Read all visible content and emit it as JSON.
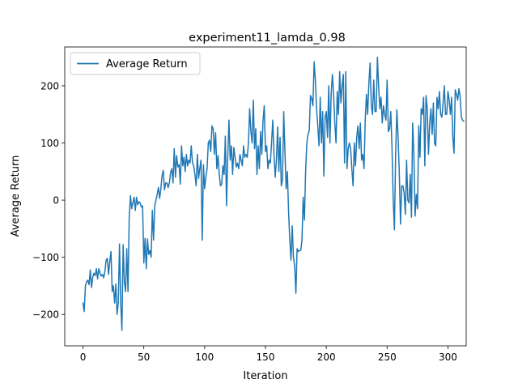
{
  "chart_data": {
    "type": "line",
    "title": "experiment11_lamda_0.98",
    "xlabel": "Iteration",
    "ylabel": "Average Return",
    "xlim": [
      -15,
      315
    ],
    "ylim": [
      -255,
      268
    ],
    "xticks": [
      0,
      50,
      100,
      150,
      200,
      250,
      300
    ],
    "yticks": [
      -200,
      -100,
      0,
      100,
      200
    ],
    "xtick_labels": [
      "0",
      "50",
      "100",
      "150",
      "200",
      "250",
      "300"
    ],
    "ytick_labels": [
      "−200",
      "−100",
      "0",
      "100",
      "200"
    ],
    "grid": false,
    "legend_position": "top-left",
    "series": [
      {
        "name": "Average Return",
        "color": "#1f77b4",
        "x_start": 0,
        "x_step": 1,
        "values": [
          -180,
          -195,
          -150,
          -143,
          -140,
          -148,
          -122,
          -153,
          -135,
          -128,
          -132,
          -120,
          -138,
          -120,
          -128,
          -133,
          -130,
          -136,
          -125,
          -105,
          -102,
          -130,
          -108,
          -90,
          -160,
          -150,
          -180,
          -147,
          -200,
          -180,
          -77,
          -180,
          -228,
          -78,
          -143,
          -160,
          -85,
          -160,
          -30,
          8,
          -15,
          -5,
          5,
          -18,
          5,
          -8,
          -3,
          -5,
          -12,
          -10,
          -110,
          -67,
          -120,
          -68,
          -95,
          -88,
          -100,
          -18,
          -70,
          -10,
          0,
          10,
          22,
          3,
          20,
          43,
          52,
          18,
          30,
          30,
          22,
          30,
          48,
          55,
          30,
          90,
          40,
          78,
          58,
          62,
          28,
          95,
          60,
          75,
          50,
          80,
          60,
          70,
          65,
          95,
          65,
          60,
          45,
          25,
          80,
          38,
          55,
          70,
          -70,
          62,
          20,
          40,
          55,
          100,
          105,
          85,
          130,
          125,
          80,
          118,
          55,
          78,
          45,
          25,
          28,
          60,
          45,
          112,
          -10,
          78,
          140,
          70,
          95,
          45,
          92,
          75,
          58,
          65,
          55,
          80,
          70,
          60,
          95,
          75,
          80,
          75,
          100,
          160,
          120,
          100,
          175,
          90,
          125,
          45,
          95,
          55,
          120,
          80,
          140,
          165,
          85,
          95,
          55,
          70,
          65,
          100,
          140,
          80,
          40,
          70,
          128,
          50,
          110,
          25,
          35,
          155,
          85,
          20,
          50,
          -20,
          -70,
          -105,
          -45,
          -100,
          -115,
          -163,
          -85,
          -90,
          -88,
          -88,
          -70,
          5,
          -35,
          50,
          100,
          115,
          122,
          183,
          178,
          165,
          242,
          210,
          160,
          130,
          95,
          180,
          100,
          155,
          42,
          145,
          155,
          110,
          200,
          100,
          185,
          220,
          185,
          135,
          100,
          190,
          150,
          225,
          170,
          200,
          220,
          65,
          225,
          55,
          90,
          100,
          90,
          55,
          25,
          100,
          60,
          110,
          130,
          90,
          135,
          70,
          80,
          55,
          140,
          185,
          150,
          205,
          240,
          165,
          150,
          210,
          155,
          155,
          250,
          200,
          160,
          180,
          135,
          165,
          150,
          140,
          210,
          120,
          125,
          155,
          92,
          0,
          -52,
          82,
          158,
          110,
          48,
          -42,
          25,
          25,
          12,
          -25,
          70,
          0,
          -5,
          45,
          -30,
          135,
          80,
          -28,
          10,
          -15,
          130,
          75,
          160,
          150,
          180,
          60,
          183,
          160,
          80,
          135,
          160,
          115,
          170,
          100,
          95,
          180,
          160,
          190,
          150,
          145,
          170,
          200,
          150,
          150,
          190,
          175,
          150,
          180,
          110,
          82,
          193,
          185,
          175,
          195,
          182,
          145,
          140,
          138
        ]
      }
    ]
  }
}
